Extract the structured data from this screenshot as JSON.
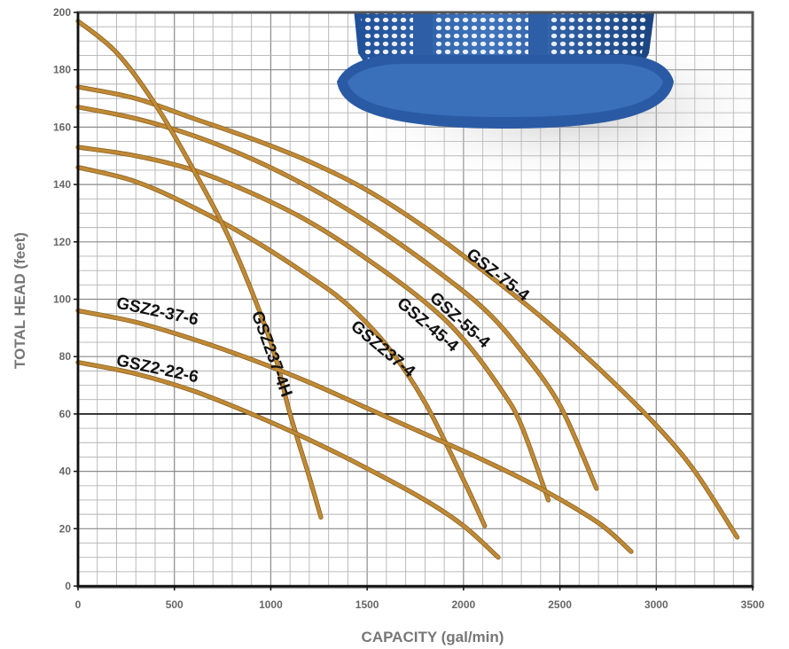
{
  "chart_data": {
    "type": "line",
    "xlabel": "CAPACITY (gal/min)",
    "ylabel": "TOTAL HEAD (feet)",
    "xlim": [
      0,
      3500
    ],
    "ylim": [
      0,
      200
    ],
    "x_ticks": [
      0,
      500,
      1000,
      1500,
      2000,
      2500,
      3000,
      3500
    ],
    "y_ticks": [
      0,
      20,
      40,
      60,
      80,
      100,
      120,
      140,
      160,
      180,
      200
    ],
    "grid": true,
    "reference_line_y": 60,
    "curve_color": "#c08a36",
    "series": [
      {
        "name": "GSZ-75-4",
        "points": [
          [
            0,
            174
          ],
          [
            300,
            170
          ],
          [
            600,
            163
          ],
          [
            900,
            156
          ],
          [
            1200,
            148
          ],
          [
            1500,
            138
          ],
          [
            1800,
            125
          ],
          [
            2100,
            110
          ],
          [
            2400,
            94
          ],
          [
            2700,
            76
          ],
          [
            3000,
            56
          ],
          [
            3200,
            40
          ],
          [
            3420,
            17
          ]
        ]
      },
      {
        "name": "GSZ-55-4",
        "points": [
          [
            0,
            167
          ],
          [
            300,
            163
          ],
          [
            600,
            157
          ],
          [
            900,
            149
          ],
          [
            1200,
            139
          ],
          [
            1500,
            127
          ],
          [
            1800,
            113
          ],
          [
            2100,
            97
          ],
          [
            2300,
            82
          ],
          [
            2500,
            63
          ],
          [
            2690,
            34
          ]
        ]
      },
      {
        "name": "GSZ-45-4",
        "points": [
          [
            0,
            153
          ],
          [
            300,
            150
          ],
          [
            600,
            145
          ],
          [
            900,
            137
          ],
          [
            1200,
            127
          ],
          [
            1500,
            114
          ],
          [
            1800,
            99
          ],
          [
            2000,
            86
          ],
          [
            2200,
            68
          ],
          [
            2300,
            56
          ],
          [
            2440,
            30
          ]
        ]
      },
      {
        "name": "GSZ237-4",
        "points": [
          [
            0,
            146
          ],
          [
            300,
            141
          ],
          [
            600,
            132
          ],
          [
            900,
            121
          ],
          [
            1200,
            108
          ],
          [
            1400,
            98
          ],
          [
            1600,
            84
          ],
          [
            1800,
            64
          ],
          [
            2000,
            37
          ],
          [
            2110,
            21
          ]
        ]
      },
      {
        "name": "GSZ237-4H",
        "points": [
          [
            0,
            197
          ],
          [
            200,
            186
          ],
          [
            400,
            168
          ],
          [
            600,
            145
          ],
          [
            800,
            119
          ],
          [
            1000,
            85
          ],
          [
            1100,
            60
          ],
          [
            1200,
            38
          ],
          [
            1260,
            24
          ]
        ]
      },
      {
        "name": "GSZ2-37-6",
        "points": [
          [
            0,
            96
          ],
          [
            300,
            92
          ],
          [
            600,
            86
          ],
          [
            900,
            79
          ],
          [
            1200,
            71
          ],
          [
            1500,
            62
          ],
          [
            1800,
            53
          ],
          [
            2100,
            44
          ],
          [
            2400,
            34
          ],
          [
            2700,
            22
          ],
          [
            2870,
            12
          ]
        ]
      },
      {
        "name": "GSZ2-22-6",
        "points": [
          [
            0,
            78
          ],
          [
            300,
            74
          ],
          [
            600,
            68
          ],
          [
            900,
            60
          ],
          [
            1200,
            51
          ],
          [
            1500,
            41
          ],
          [
            1800,
            30
          ],
          [
            2000,
            21
          ],
          [
            2180,
            10
          ]
        ]
      }
    ]
  }
}
